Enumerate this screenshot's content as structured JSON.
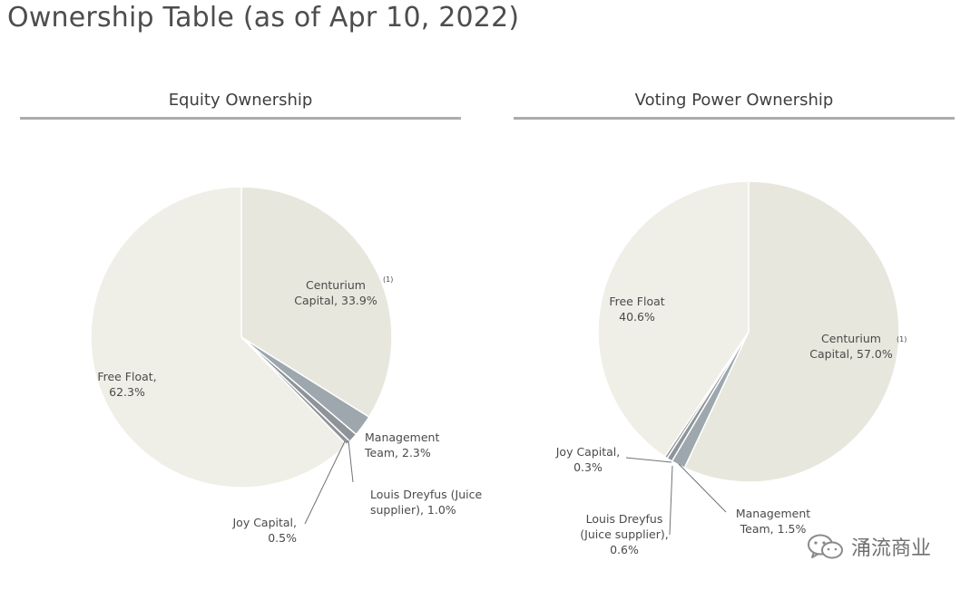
{
  "page_title": "Ownership Table (as of Apr 10, 2022)",
  "colors": {
    "main_slice": "#e7e7de",
    "free_float": "#efefe8",
    "management": "#9da7ad",
    "small_slice": "#8e9499",
    "leader": "#6e7377",
    "divider": "#ffffff"
  },
  "chart_data": [
    {
      "type": "pie",
      "title": "Equity Ownership",
      "slices": [
        {
          "name": "Centurium Capital",
          "value": 33.9,
          "label_lines": [
            "Centurium",
            "Capital, 33.9%"
          ],
          "footnote": "(1)"
        },
        {
          "name": "Management Team",
          "value": 2.3,
          "label_lines": [
            "Management",
            "Team, 2.3%"
          ]
        },
        {
          "name": "Louis Dreyfus (Juice supplier)",
          "value": 1.0,
          "label_lines": [
            "Louis Dreyfus (Juice",
            "supplier), 1.0%"
          ]
        },
        {
          "name": "Joy Capital",
          "value": 0.5,
          "label_lines": [
            "Joy Capital,",
            "0.5%"
          ]
        },
        {
          "name": "Free Float",
          "value": 62.3,
          "label_lines": [
            "Free Float,",
            "62.3%"
          ]
        }
      ]
    },
    {
      "type": "pie",
      "title": "Voting Power Ownership",
      "slices": [
        {
          "name": "Centurium Capital",
          "value": 57.0,
          "label_lines": [
            "Centurium",
            "Capital, 57.0%"
          ],
          "footnote": "(1)"
        },
        {
          "name": "Management Team",
          "value": 1.5,
          "label_lines": [
            "Management",
            "Team, 1.5%"
          ]
        },
        {
          "name": "Louis Dreyfus (Juice supplier)",
          "value": 0.6,
          "label_lines": [
            "Louis Dreyfus",
            "(Juice supplier),",
            "0.6%"
          ]
        },
        {
          "name": "Joy Capital",
          "value": 0.3,
          "label_lines": [
            "Joy Capital,",
            "0.3%"
          ]
        },
        {
          "name": "Free Float",
          "value": 40.6,
          "label_lines": [
            "Free Float",
            "40.6%"
          ]
        }
      ]
    }
  ],
  "watermark": {
    "text": "涌流商业",
    "icon": "wechat-icon"
  }
}
